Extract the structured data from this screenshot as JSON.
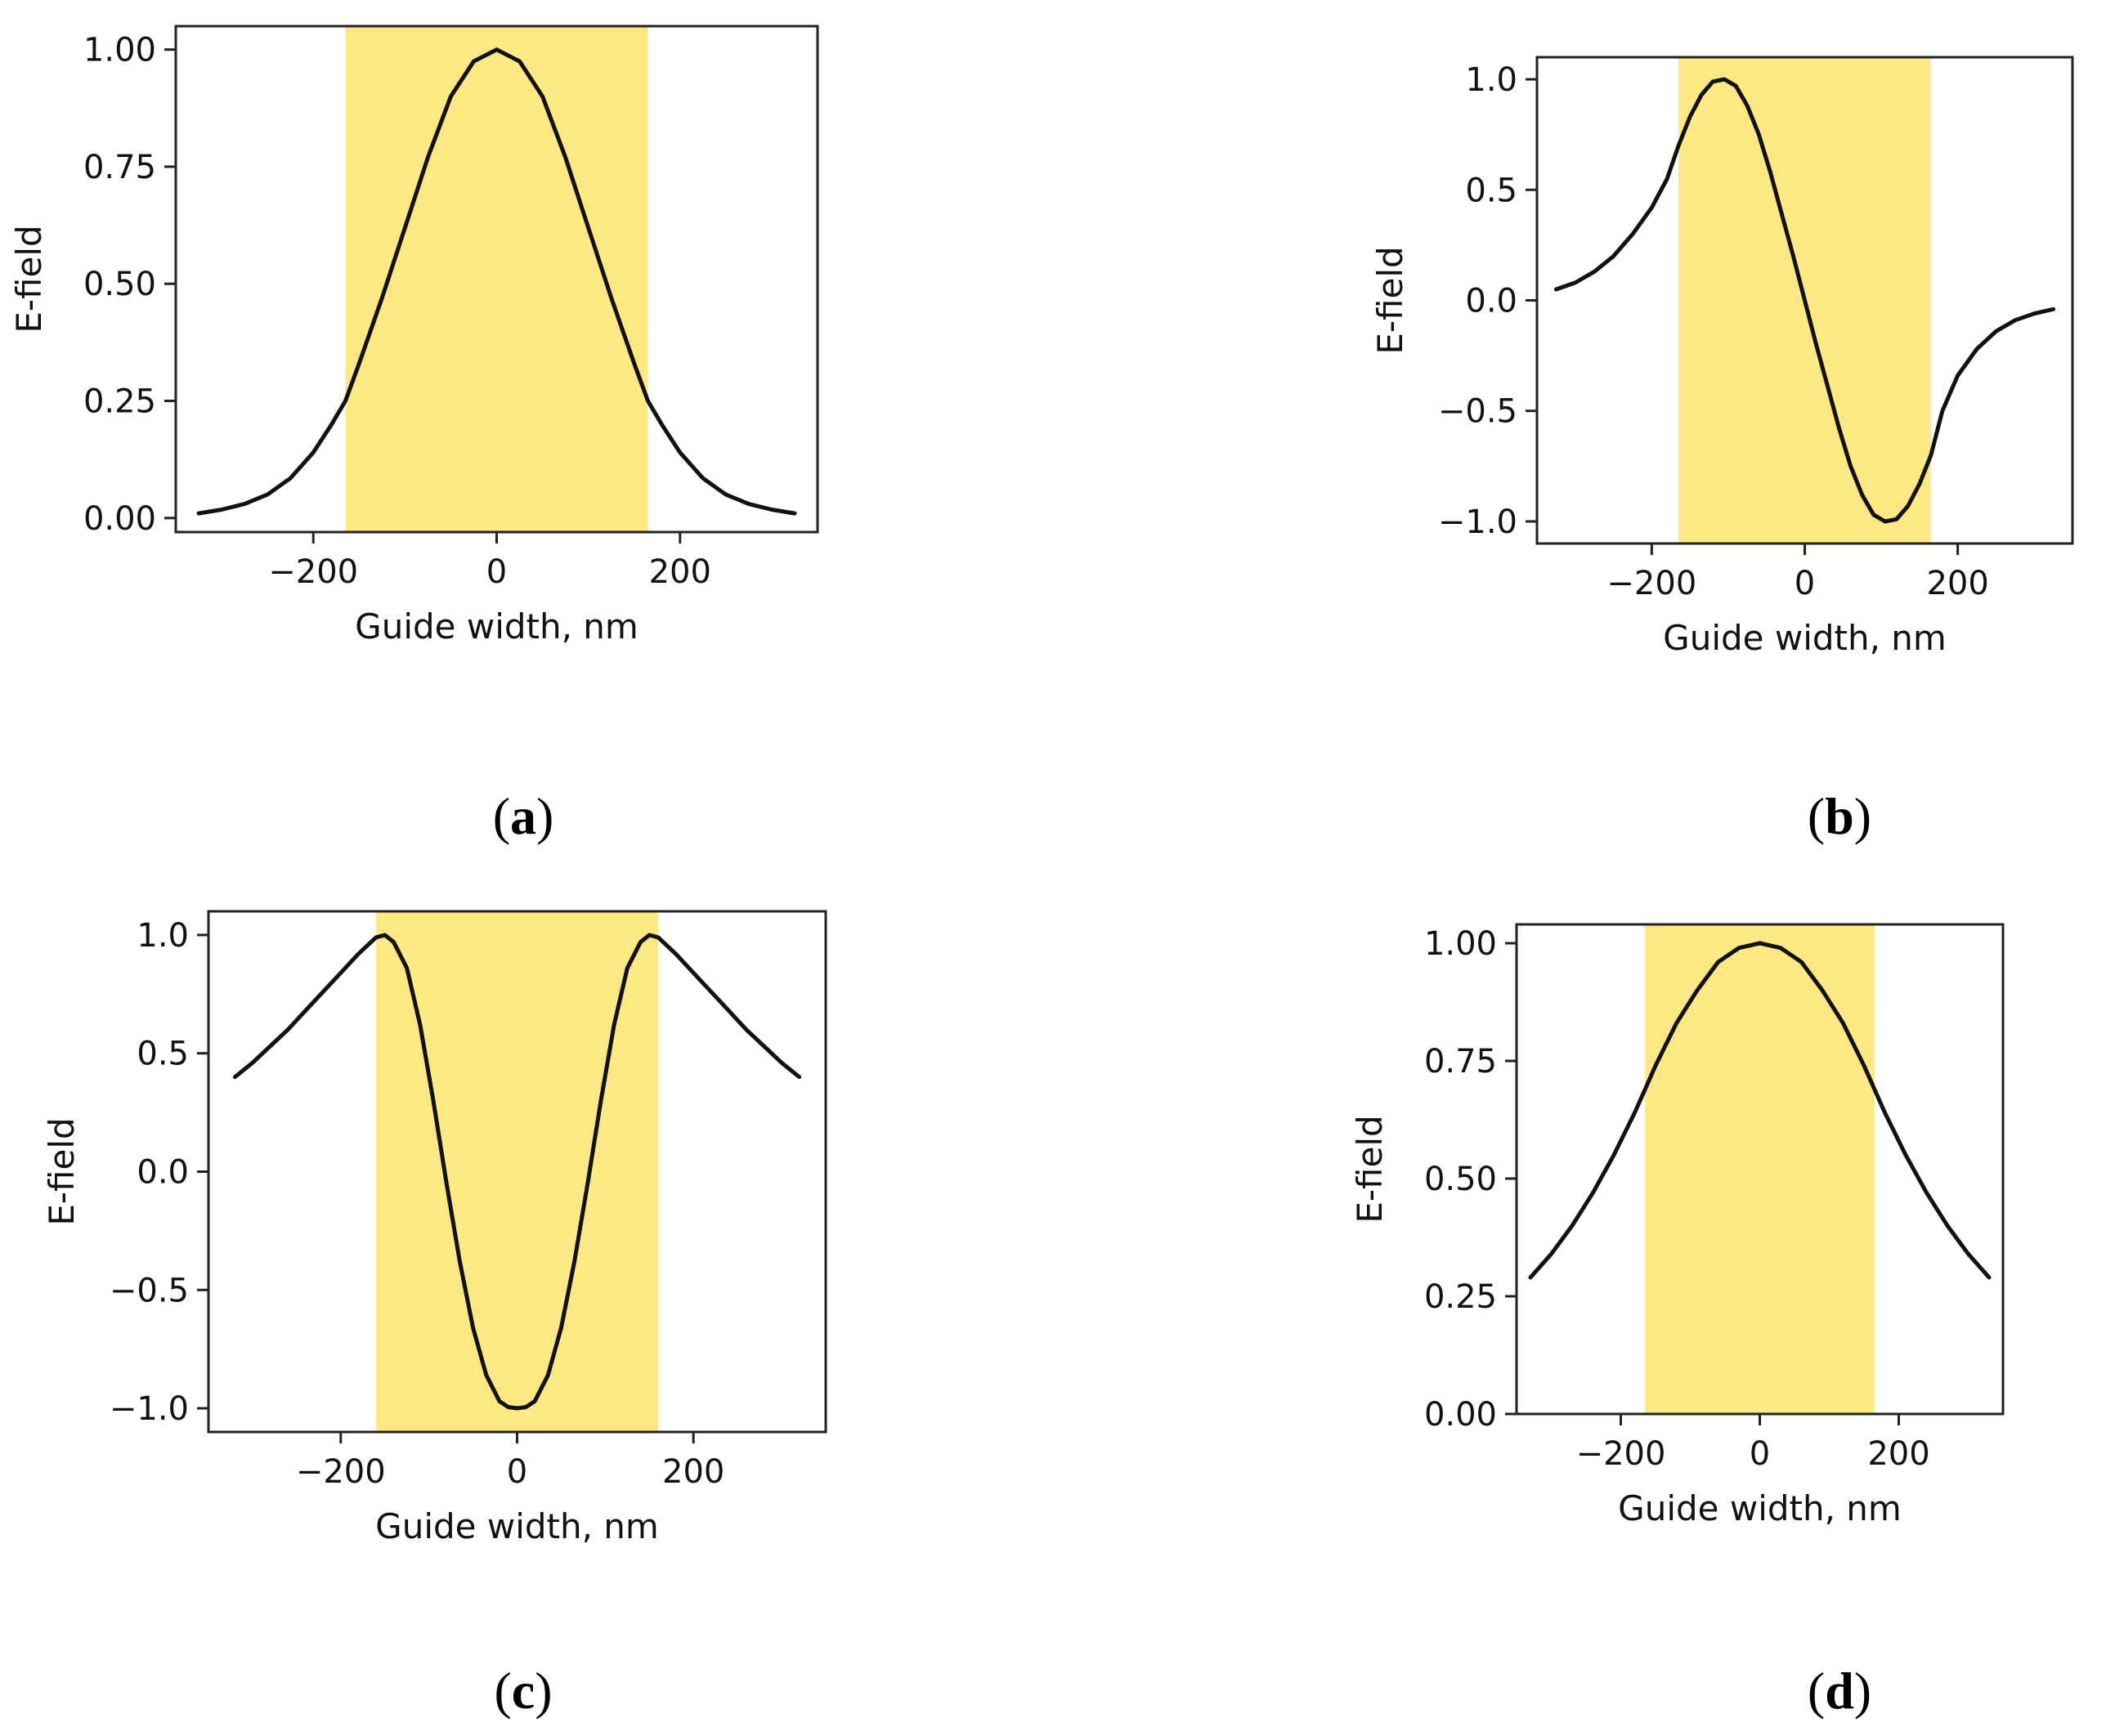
{
  "colors": {
    "band": "#fde883",
    "curve": "#111111",
    "axis": "#222222",
    "background": "#ffffff"
  },
  "chart_data": [
    {
      "panel": "a",
      "caption_open": "(",
      "caption_letter": "a",
      "caption_close": ")",
      "type": "line",
      "xlabel": "Guide width, nm",
      "ylabel": "E-field",
      "xlim": [
        -350,
        350
      ],
      "ylim": [
        -0.03,
        1.05
      ],
      "xticks": [
        -200,
        0,
        200
      ],
      "xtick_labels": [
        "−200",
        "0",
        "200"
      ],
      "yticks": [
        0.0,
        0.25,
        0.5,
        0.75,
        1.0
      ],
      "ytick_labels": [
        "0.00",
        "0.25",
        "0.50",
        "0.75",
        "1.00"
      ],
      "band": [
        -165,
        165
      ],
      "series": [
        {
          "name": "E-field",
          "x": [
            -325,
            -300,
            -275,
            -250,
            -225,
            -200,
            -180,
            -165,
            -150,
            -125,
            -100,
            -75,
            -50,
            -25,
            0,
            25,
            50,
            75,
            100,
            125,
            150,
            165,
            180,
            200,
            225,
            250,
            275,
            300,
            325
          ],
          "values": [
            0.01,
            0.018,
            0.03,
            0.05,
            0.085,
            0.14,
            0.2,
            0.25,
            0.33,
            0.47,
            0.62,
            0.77,
            0.9,
            0.975,
            1.0,
            0.975,
            0.9,
            0.77,
            0.62,
            0.47,
            0.33,
            0.25,
            0.2,
            0.14,
            0.085,
            0.05,
            0.03,
            0.018,
            0.01
          ]
        }
      ]
    },
    {
      "panel": "b",
      "caption_open": "(",
      "caption_letter": "b",
      "caption_close": ")",
      "type": "line",
      "xlabel": "Guide width, nm",
      "ylabel": "E-field",
      "xlim": [
        -350,
        350
      ],
      "ylim": [
        -1.1,
        1.1
      ],
      "xticks": [
        -200,
        0,
        200
      ],
      "xtick_labels": [
        "−200",
        "0",
        "200"
      ],
      "yticks": [
        1.0,
        0.5,
        0.0,
        -0.5,
        -1.0
      ],
      "ytick_labels": [
        "1.0",
        "0.5",
        "0.0",
        "−0.5",
        "−1.0"
      ],
      "band": [
        -165,
        165
      ],
      "series": [
        {
          "name": "E-field",
          "x": [
            -325,
            -300,
            -275,
            -250,
            -225,
            -200,
            -180,
            -165,
            -150,
            -135,
            -120,
            -105,
            -90,
            -75,
            -60,
            -45,
            -30,
            -15,
            0,
            15,
            30,
            45,
            60,
            75,
            90,
            105,
            120,
            135,
            150,
            165,
            180,
            200,
            225,
            250,
            275,
            300,
            325
          ],
          "values": [
            0.05,
            0.08,
            0.13,
            0.2,
            0.3,
            0.42,
            0.55,
            0.7,
            0.83,
            0.93,
            0.99,
            1.0,
            0.97,
            0.88,
            0.75,
            0.58,
            0.39,
            0.2,
            0.0,
            -0.2,
            -0.39,
            -0.58,
            -0.75,
            -0.88,
            -0.97,
            -1.0,
            -0.99,
            -0.93,
            -0.83,
            -0.7,
            -0.5,
            -0.34,
            -0.22,
            -0.14,
            -0.09,
            -0.06,
            -0.04
          ]
        }
      ]
    },
    {
      "panel": "c",
      "caption_open": "(",
      "caption_letter": "c",
      "caption_close": ")",
      "type": "line",
      "xlabel": "Guide width, nm",
      "ylabel": "E-field",
      "xlim": [
        -350,
        350
      ],
      "ylim": [
        -1.1,
        1.1
      ],
      "xticks": [
        -200,
        0,
        200
      ],
      "xtick_labels": [
        "−200",
        "0",
        "200"
      ],
      "yticks": [
        1.0,
        0.5,
        0.0,
        -0.5,
        -1.0
      ],
      "ytick_labels": [
        "1.0",
        "0.5",
        "0.0",
        "−0.5",
        "−1.0"
      ],
      "band": [
        -160,
        160
      ],
      "series": [
        {
          "name": "E-field",
          "x": [
            -320,
            -300,
            -280,
            -260,
            -240,
            -220,
            -200,
            -180,
            -160,
            -150,
            -140,
            -125,
            -110,
            -95,
            -80,
            -65,
            -50,
            -35,
            -20,
            -10,
            0,
            10,
            20,
            35,
            50,
            65,
            80,
            95,
            110,
            125,
            140,
            150,
            160,
            180,
            200,
            220,
            240,
            260,
            280,
            300,
            320
          ],
          "values": [
            0.4,
            0.46,
            0.53,
            0.6,
            0.68,
            0.76,
            0.84,
            0.92,
            0.99,
            1.0,
            0.97,
            0.86,
            0.62,
            0.3,
            -0.05,
            -0.38,
            -0.66,
            -0.86,
            -0.97,
            -0.995,
            -1.0,
            -0.995,
            -0.97,
            -0.86,
            -0.66,
            -0.38,
            -0.05,
            0.3,
            0.62,
            0.86,
            0.97,
            1.0,
            0.99,
            0.92,
            0.84,
            0.76,
            0.68,
            0.6,
            0.53,
            0.46,
            0.4
          ]
        }
      ]
    },
    {
      "panel": "d",
      "caption_open": "(",
      "caption_letter": "d",
      "caption_close": ")",
      "type": "line",
      "xlabel": "Guide width, nm",
      "ylabel": "E-field",
      "xlim": [
        -350,
        350
      ],
      "ylim": [
        0.0,
        1.04
      ],
      "xticks": [
        -200,
        0,
        200
      ],
      "xtick_labels": [
        "−200",
        "0",
        "200"
      ],
      "yticks": [
        0.0,
        0.25,
        0.5,
        0.75,
        1.0
      ],
      "ytick_labels": [
        "0.00",
        "0.25",
        "0.50",
        "0.75",
        "1.00"
      ],
      "band": [
        -165,
        165
      ],
      "series": [
        {
          "name": "E-field",
          "x": [
            -330,
            -300,
            -270,
            -240,
            -210,
            -180,
            -165,
            -150,
            -120,
            -90,
            -60,
            -30,
            0,
            30,
            60,
            90,
            120,
            150,
            165,
            180,
            210,
            240,
            270,
            300,
            330
          ],
          "values": [
            0.29,
            0.34,
            0.4,
            0.47,
            0.55,
            0.64,
            0.69,
            0.74,
            0.83,
            0.9,
            0.96,
            0.99,
            1.0,
            0.99,
            0.96,
            0.9,
            0.83,
            0.74,
            0.69,
            0.64,
            0.55,
            0.47,
            0.4,
            0.34,
            0.29
          ]
        }
      ]
    }
  ]
}
